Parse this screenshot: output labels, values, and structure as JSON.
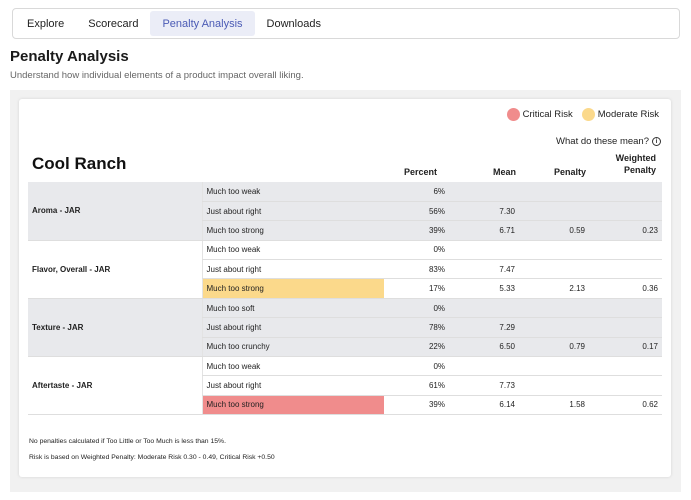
{
  "tabs": [
    {
      "label": "Explore"
    },
    {
      "label": "Scorecard"
    },
    {
      "label": "Penalty Analysis",
      "active": true
    },
    {
      "label": "Downloads"
    }
  ],
  "page": {
    "title": "Penalty Analysis",
    "subtitle": "Understand how individual elements of a product impact overall liking."
  },
  "legend": {
    "critical": {
      "label": "Critical Risk",
      "color": "#f08c8c"
    },
    "moderate": {
      "label": "Moderate Risk",
      "color": "#fbd98b"
    }
  },
  "help_link": "What do these mean?",
  "table": {
    "product": "Cool Ranch",
    "headers": {
      "percent": "Percent",
      "mean": "Mean",
      "penalty": "Penalty",
      "weighted_penalty_1": "Weighted",
      "weighted_penalty_2": "Penalty"
    },
    "groups": [
      {
        "attribute": "Aroma - JAR",
        "shaded": true,
        "rows": [
          {
            "level": "Much too weak",
            "percent": "6%",
            "mean": "",
            "penalty": "",
            "weighted": "",
            "risk": ""
          },
          {
            "level": "Just about right",
            "percent": "56%",
            "mean": "7.30",
            "penalty": "",
            "weighted": "",
            "risk": ""
          },
          {
            "level": "Much too strong",
            "percent": "39%",
            "mean": "6.71",
            "penalty": "0.59",
            "weighted": "0.23",
            "risk": ""
          }
        ]
      },
      {
        "attribute": "Flavor, Overall - JAR",
        "shaded": false,
        "rows": [
          {
            "level": "Much too weak",
            "percent": "0%",
            "mean": "",
            "penalty": "",
            "weighted": "",
            "risk": ""
          },
          {
            "level": "Just about right",
            "percent": "83%",
            "mean": "7.47",
            "penalty": "",
            "weighted": "",
            "risk": ""
          },
          {
            "level": "Much too strong",
            "percent": "17%",
            "mean": "5.33",
            "penalty": "2.13",
            "weighted": "0.36",
            "risk": "moderate"
          }
        ]
      },
      {
        "attribute": "Texture - JAR",
        "shaded": true,
        "rows": [
          {
            "level": "Much too soft",
            "percent": "0%",
            "mean": "",
            "penalty": "",
            "weighted": "",
            "risk": ""
          },
          {
            "level": "Just about right",
            "percent": "78%",
            "mean": "7.29",
            "penalty": "",
            "weighted": "",
            "risk": ""
          },
          {
            "level": "Much too crunchy",
            "percent": "22%",
            "mean": "6.50",
            "penalty": "0.79",
            "weighted": "0.17",
            "risk": ""
          }
        ]
      },
      {
        "attribute": "Aftertaste - JAR",
        "shaded": false,
        "rows": [
          {
            "level": "Much too weak",
            "percent": "0%",
            "mean": "",
            "penalty": "",
            "weighted": "",
            "risk": ""
          },
          {
            "level": "Just about right",
            "percent": "61%",
            "mean": "7.73",
            "penalty": "",
            "weighted": "",
            "risk": ""
          },
          {
            "level": "Much too strong",
            "percent": "39%",
            "mean": "6.14",
            "penalty": "1.58",
            "weighted": "0.62",
            "risk": "critical"
          }
        ]
      }
    ]
  },
  "notes": [
    "No penalties calculated if Too Little or Too Much is less than 15%.",
    "Risk is based on Weighted Penalty: Moderate Risk 0.30 - 0.49, Critical Risk +0.50"
  ]
}
